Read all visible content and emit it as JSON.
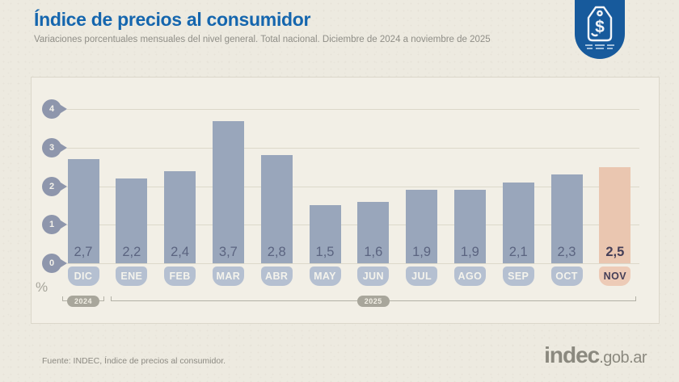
{
  "header": {
    "title": "Índice de precios al consumidor",
    "subtitle": "Variaciones porcentuales mensuales del nivel general. Total nacional. Diciembre de 2024 a noviembre de 2025"
  },
  "badge": {
    "icon": "price-tag-dollar-icon",
    "symbol": "$",
    "color": "#175a9c"
  },
  "chart_data": {
    "type": "bar",
    "title": "Índice de precios al consumidor",
    "unit": "%",
    "categories": [
      "DIC",
      "ENE",
      "FEB",
      "MAR",
      "ABR",
      "MAY",
      "JUN",
      "JUL",
      "AGO",
      "SEP",
      "OCT",
      "NOV"
    ],
    "values": [
      2.7,
      2.2,
      2.4,
      3.7,
      2.8,
      1.5,
      1.6,
      1.9,
      1.9,
      2.1,
      2.3,
      2.5
    ],
    "value_labels": [
      "2,7",
      "2,2",
      "2,4",
      "3,7",
      "2,8",
      "1,5",
      "1,6",
      "1,9",
      "1,9",
      "2,1",
      "2,3",
      "2,5"
    ],
    "highlight_index": 11,
    "ylim": [
      0,
      4
    ],
    "yticks": [
      0,
      1,
      2,
      3,
      4
    ],
    "grid": true,
    "legend": "none",
    "year_groups": [
      {
        "label": "2024",
        "from": 0,
        "to": 0
      },
      {
        "label": "2025",
        "from": 1,
        "to": 11
      }
    ],
    "colors": {
      "bar": "#99a6bb",
      "bar_highlight": "#eac6b0",
      "month_pill": "#b5c0d1",
      "month_pill_highlight": "#edcbb7",
      "value_text": "#5b6480",
      "value_text_highlight": "#453f58",
      "axis_pin": "#8e96ac"
    }
  },
  "axis": {
    "percent_label": "%"
  },
  "footer": {
    "source": "Fuente: INDEC, Índice de precios al consumidor.",
    "logo_main": "indec",
    "logo_suffix": ".gob.ar"
  }
}
